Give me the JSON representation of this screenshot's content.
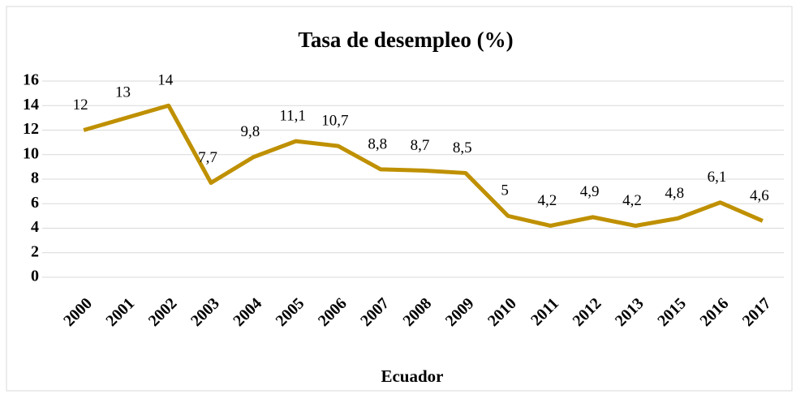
{
  "chart_data": {
    "type": "line",
    "title": "Tasa de desempleo (%)",
    "x_label": "Ecuador",
    "categories": [
      "2000",
      "2001",
      "2002",
      "2003",
      "2004",
      "2005",
      "2006",
      "2007",
      "2008",
      "2009",
      "2010",
      "2011",
      "2012",
      "2013",
      "2015",
      "2016",
      "2017"
    ],
    "series": [
      {
        "name": "Tasa de desempleo",
        "color": "#bf9000",
        "values": [
          12,
          13,
          14,
          7.7,
          9.8,
          11.1,
          10.7,
          8.8,
          8.7,
          8.5,
          5,
          4.2,
          4.9,
          4.2,
          4.8,
          6.1,
          4.6
        ],
        "value_labels": [
          "12",
          "13",
          "14",
          "7,7",
          "9,8",
          "11,1",
          "10,7",
          "8,8",
          "8,7",
          "8,5",
          "5",
          "4,2",
          "4,9",
          "4,2",
          "4,8",
          "6,1",
          "4,6"
        ]
      }
    ],
    "ylim": [
      0,
      16
    ],
    "yticks": [
      0,
      2,
      4,
      6,
      8,
      10,
      12,
      14,
      16
    ],
    "grid": true
  }
}
